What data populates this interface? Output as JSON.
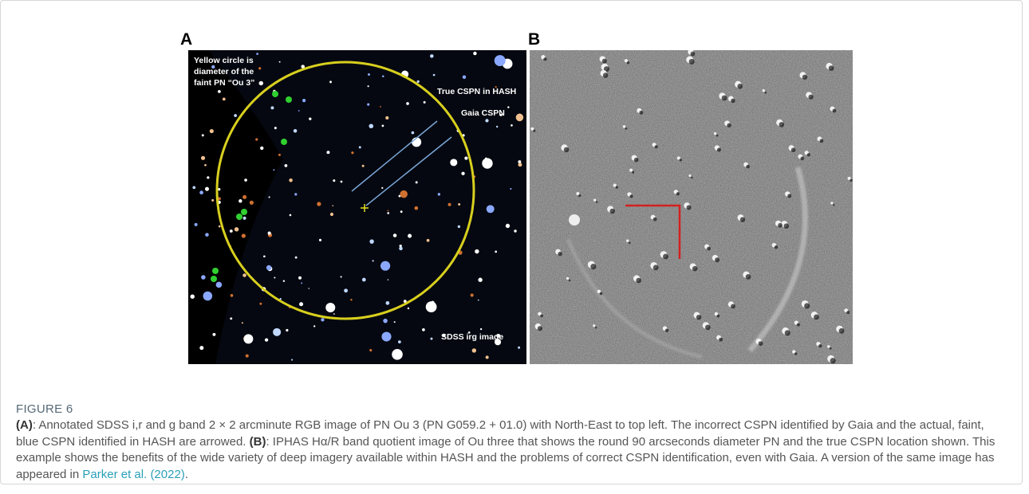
{
  "figure": {
    "panel_a": {
      "label": "A",
      "annotations": {
        "circle_note": [
          "Yellow circle is",
          "diameter of the",
          "faint PN “Ou 3”"
        ],
        "true_cspn": "True CSPN in HASH",
        "gaia_cspn": "Gaia CSPN",
        "image_name": "SDSS irg image"
      }
    },
    "panel_b": {
      "label": "B"
    },
    "caption": {
      "figure_label": "FIGURE 6",
      "a_label": "(A)",
      "a_text": ": Annotated SDSS i,r and g band 2 × 2 arcminute RGB image of PN Ou 3 (PN G059.2 + 01.0) with North-East to top left. The incorrect CSPN identified by Gaia and the actual, faint, blue CSPN identified in HASH are arrowed. ",
      "b_label": "(B)",
      "b_text": ": IPHAS Hα/R band quotient image of Ou three that shows the round 90 arcseconds diameter PN and the true CSPN location shown. This example shows the benefits of the wide variety of deep imagery available within HASH and the problems of correct CSPN identification, even with Gaia. A version of the same image has appeared in ",
      "link": "Parker et al. (2022)",
      "end": "."
    }
  }
}
